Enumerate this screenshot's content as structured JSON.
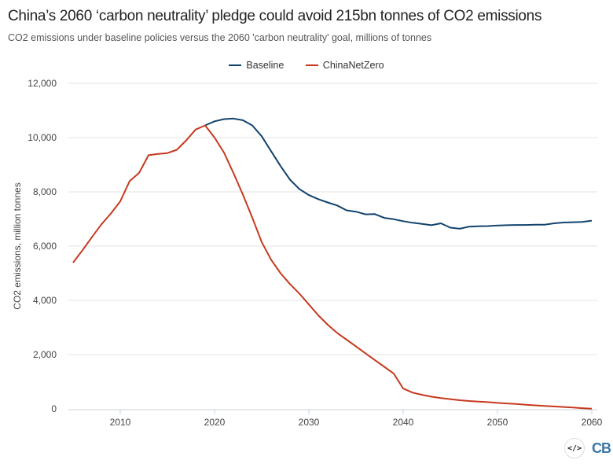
{
  "title": "China’s 2060 ‘carbon neutrality’ pledge could avoid 215bn tonnes of CO2 emissions",
  "subtitle": "CO2 emissions under baseline policies versus the 2060 'carbon neutrality' goal, millions of tonnes",
  "logo": {
    "embed_icon": "code-icon",
    "brand": "CB"
  },
  "chart_data": {
    "type": "line",
    "title": "China’s 2060 ‘carbon neutrality’ pledge could avoid 215bn tonnes of CO2 emissions",
    "xlabel": "",
    "ylabel": "CO2 emissions, million tonnes",
    "xlim": [
      2005,
      2060
    ],
    "ylim": [
      0,
      12000
    ],
    "xticks": [
      2010,
      2020,
      2030,
      2040,
      2050,
      2060
    ],
    "yticks": [
      0,
      2000,
      4000,
      6000,
      8000,
      10000,
      12000
    ],
    "ytick_labels": [
      "0",
      "2,000",
      "4,000",
      "6,000",
      "8,000",
      "10,000",
      "12,000"
    ],
    "grid": true,
    "legend": "top",
    "series": [
      {
        "name": "Baseline",
        "color": "#12436d",
        "x": [
          2019,
          2020,
          2021,
          2022,
          2023,
          2024,
          2025,
          2026,
          2027,
          2028,
          2029,
          2030,
          2031,
          2032,
          2033,
          2034,
          2035,
          2036,
          2037,
          2038,
          2039,
          2040,
          2041,
          2042,
          2043,
          2044,
          2045,
          2046,
          2047,
          2048,
          2049,
          2050,
          2051,
          2052,
          2053,
          2054,
          2055,
          2056,
          2057,
          2058,
          2059,
          2060
        ],
        "values": [
          10450,
          10600,
          10680,
          10700,
          10640,
          10450,
          10050,
          9500,
          8950,
          8450,
          8100,
          7880,
          7730,
          7610,
          7500,
          7320,
          7270,
          7170,
          7180,
          7040,
          6990,
          6920,
          6860,
          6820,
          6770,
          6840,
          6680,
          6640,
          6720,
          6730,
          6740,
          6760,
          6770,
          6780,
          6780,
          6790,
          6790,
          6840,
          6870,
          6880,
          6890,
          6940
        ]
      },
      {
        "name": "ChinaNetZero",
        "color": "#c7391f",
        "x": [
          2005,
          2006,
          2007,
          2008,
          2009,
          2010,
          2011,
          2012,
          2013,
          2014,
          2015,
          2016,
          2017,
          2018,
          2019,
          2020,
          2021,
          2022,
          2023,
          2024,
          2025,
          2026,
          2027,
          2028,
          2029,
          2030,
          2031,
          2032,
          2033,
          2034,
          2035,
          2036,
          2037,
          2038,
          2039,
          2040,
          2041,
          2042,
          2043,
          2044,
          2045,
          2046,
          2047,
          2048,
          2049,
          2050,
          2051,
          2052,
          2053,
          2054,
          2055,
          2056,
          2057,
          2058,
          2059,
          2060
        ],
        "values": [
          5390,
          5850,
          6330,
          6800,
          7200,
          7650,
          8400,
          8700,
          9350,
          9400,
          9430,
          9550,
          9900,
          10300,
          10450,
          10000,
          9450,
          8700,
          7900,
          7050,
          6150,
          5500,
          5000,
          4600,
          4250,
          3850,
          3450,
          3100,
          2800,
          2550,
          2300,
          2050,
          1800,
          1550,
          1300,
          750,
          600,
          520,
          450,
          400,
          360,
          320,
          290,
          270,
          250,
          220,
          200,
          180,
          150,
          130,
          110,
          90,
          70,
          50,
          25,
          10
        ]
      }
    ]
  }
}
